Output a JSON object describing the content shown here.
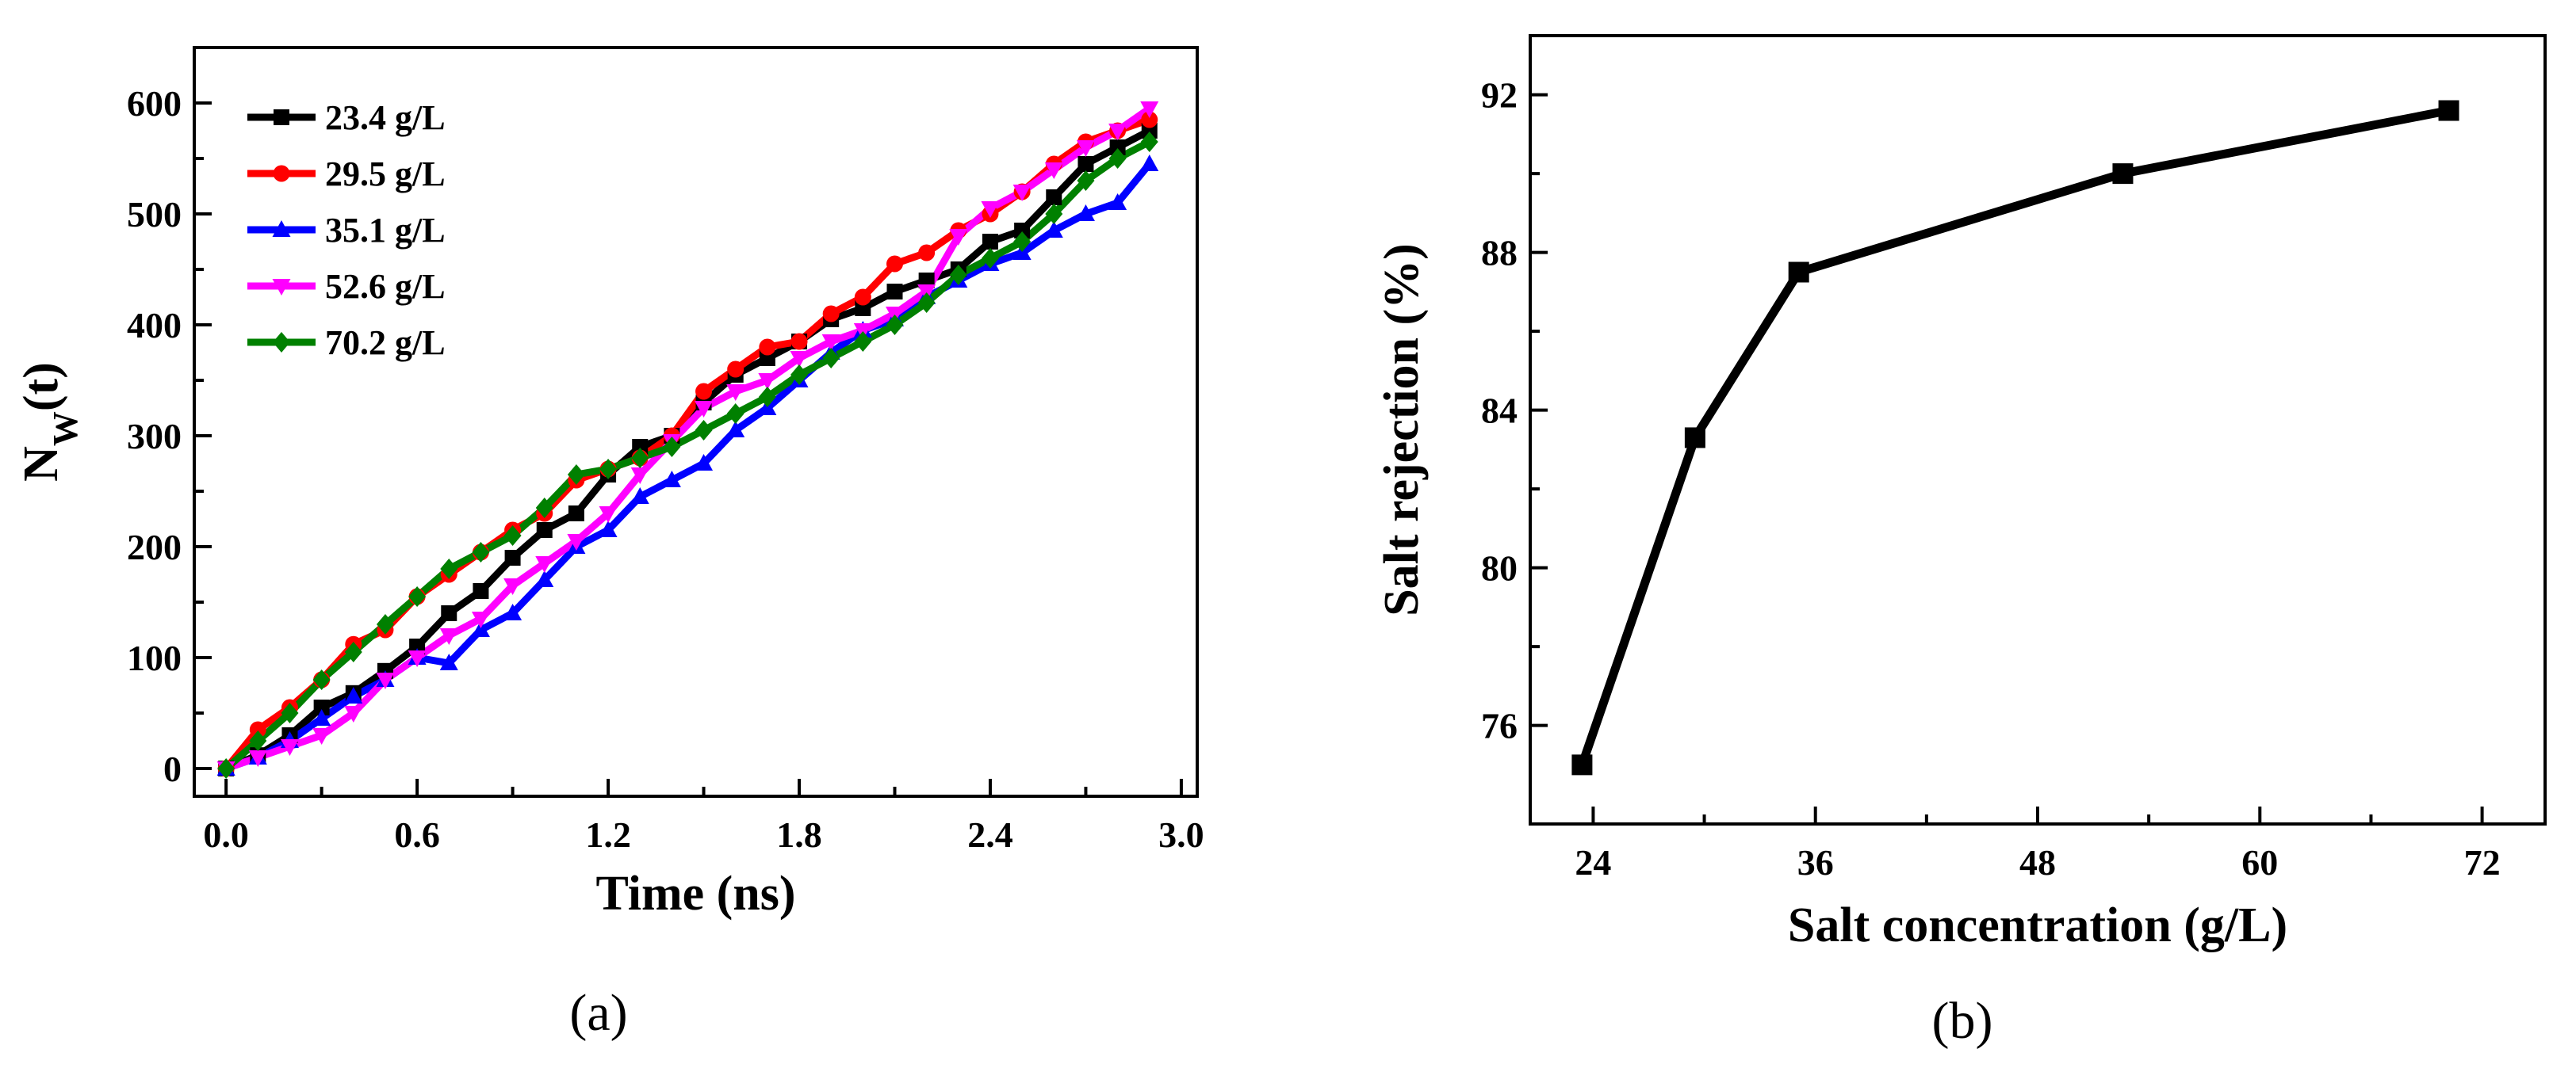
{
  "chart_data": [
    {
      "type": "line",
      "caption": "(a)",
      "xlabel": "Time (ns)",
      "ylabel": "N",
      "ylabel_sub": "W",
      "ylabel_suffix": "(t)",
      "xlim": [
        -0.1,
        3.05
      ],
      "ylim": [
        -25,
        650
      ],
      "xticks": [
        0.0,
        0.6,
        1.2,
        1.8,
        2.4,
        3.0
      ],
      "xtick_labels": [
        "0.0",
        "0.6",
        "1.2",
        "1.8",
        "2.4",
        "3.0"
      ],
      "yticks": [
        0,
        100,
        200,
        300,
        400,
        500,
        600
      ],
      "ytick_labels": [
        "0",
        "100",
        "200",
        "300",
        "400",
        "500",
        "600"
      ],
      "legend_position": "top-left",
      "x": [
        0.0,
        0.1,
        0.2,
        0.3,
        0.4,
        0.5,
        0.6,
        0.7,
        0.8,
        0.9,
        1.0,
        1.1,
        1.2,
        1.3,
        1.4,
        1.5,
        1.6,
        1.7,
        1.8,
        1.9,
        2.0,
        2.1,
        2.2,
        2.3,
        2.4,
        2.5,
        2.6,
        2.7,
        2.8,
        2.9
      ],
      "series": [
        {
          "name": "23.4 g/L",
          "color": "#000000",
          "marker": "square",
          "values": [
            0,
            12,
            30,
            55,
            68,
            88,
            110,
            140,
            160,
            190,
            215,
            230,
            265,
            290,
            300,
            330,
            355,
            370,
            385,
            405,
            415,
            430,
            440,
            450,
            475,
            485,
            515,
            545,
            560,
            575
          ]
        },
        {
          "name": "29.5 g/L",
          "color": "#ff0000",
          "marker": "circle",
          "values": [
            0,
            35,
            55,
            80,
            112,
            125,
            155,
            175,
            195,
            215,
            230,
            260,
            270,
            280,
            300,
            340,
            360,
            380,
            385,
            410,
            425,
            455,
            465,
            485,
            500,
            520,
            545,
            565,
            575,
            585
          ]
        },
        {
          "name": "35.1 g/L",
          "color": "#0000ff",
          "marker": "triangle-up",
          "values": [
            0,
            10,
            25,
            45,
            65,
            80,
            100,
            95,
            125,
            140,
            170,
            200,
            215,
            245,
            260,
            275,
            305,
            325,
            350,
            375,
            395,
            405,
            425,
            440,
            455,
            465,
            485,
            500,
            510,
            545
          ]
        },
        {
          "name": "52.6 g/L",
          "color": "#ff00ff",
          "marker": "triangle-down",
          "values": [
            0,
            10,
            20,
            30,
            50,
            80,
            100,
            120,
            135,
            165,
            185,
            205,
            230,
            265,
            295,
            325,
            340,
            350,
            370,
            385,
            395,
            410,
            430,
            480,
            505,
            520,
            540,
            560,
            575,
            595
          ]
        },
        {
          "name": "70.2 g/L",
          "color": "#008000",
          "marker": "diamond",
          "values": [
            0,
            25,
            50,
            80,
            105,
            130,
            155,
            180,
            195,
            210,
            235,
            265,
            270,
            280,
            290,
            305,
            320,
            335,
            355,
            370,
            385,
            400,
            420,
            445,
            460,
            475,
            500,
            530,
            550,
            565
          ]
        }
      ]
    },
    {
      "type": "line",
      "caption": "(b)",
      "xlabel": "Salt concentration (g/L)",
      "ylabel": "Salt rejection (%)",
      "xlim": [
        20.6,
        75.4
      ],
      "ylim": [
        73.5,
        93.5
      ],
      "xticks": [
        24,
        36,
        48,
        60,
        72
      ],
      "xtick_labels": [
        "24",
        "36",
        "48",
        "60",
        "72"
      ],
      "yticks": [
        76,
        80,
        84,
        88,
        92
      ],
      "ytick_labels": [
        "76",
        "80",
        "84",
        "88",
        "92"
      ],
      "series": [
        {
          "name": "Salt rejection",
          "color": "#000000",
          "marker": "square",
          "x": [
            23.4,
            29.5,
            35.1,
            52.6,
            70.2
          ],
          "values": [
            75.0,
            83.3,
            87.5,
            90.0,
            91.6
          ]
        }
      ]
    }
  ]
}
